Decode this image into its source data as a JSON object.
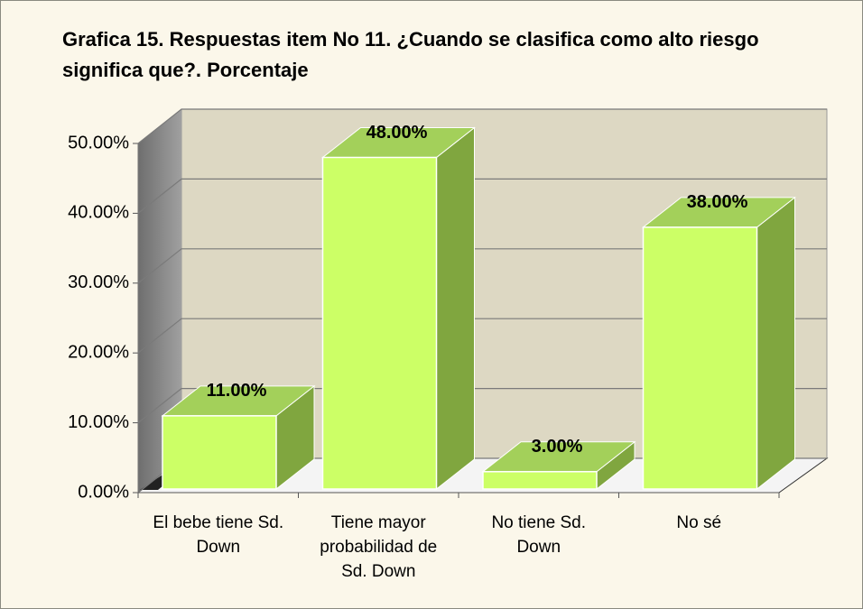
{
  "chart_data": {
    "type": "bar3d",
    "title": "Grafica 15. Respuestas item No 11. ¿Cuando se clasifica como alto riesgo significa que?. Porcentaje",
    "categories": [
      "El bebe tiene Sd. Down",
      "Tiene mayor probabilidad de Sd. Down",
      "No tiene Sd. Down",
      "No sé"
    ],
    "values": [
      11,
      48,
      3,
      38
    ],
    "value_labels": [
      "11.00%",
      "48.00%",
      "3.00%",
      "38.00%"
    ],
    "color": "#ccff66",
    "ylim": [
      0,
      50
    ],
    "yticks": [
      {
        "value": 0,
        "label": "0.00%"
      },
      {
        "value": 10,
        "label": "10.00%"
      },
      {
        "value": 20,
        "label": "20.00%"
      },
      {
        "value": 30,
        "label": "30.00%"
      },
      {
        "value": 40,
        "label": "40.00%"
      },
      {
        "value": 50,
        "label": "50.00%"
      }
    ],
    "grid": true
  }
}
